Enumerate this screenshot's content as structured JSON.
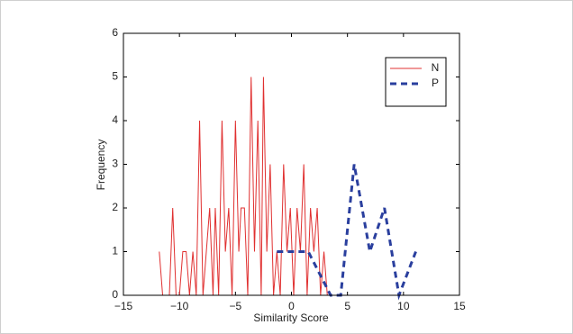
{
  "chart_data": {
    "type": "line",
    "xlabel": "Similarity Score",
    "ylabel": "Frequency",
    "xlim": [
      -15,
      15
    ],
    "xticks": [
      {
        "value": -15,
        "label": "−15"
      },
      {
        "value": -10,
        "label": "−10"
      },
      {
        "value": -5,
        "label": "−5"
      },
      0,
      5,
      10,
      15
    ],
    "ylim": [
      0,
      6
    ],
    "yticks": [
      0,
      1,
      2,
      3,
      4,
      5,
      6
    ],
    "legend": "upper right",
    "series": [
      {
        "name": "N",
        "color": "#e03030",
        "line_style": "solid",
        "x": [
          -11.8,
          -11.5,
          -11.2,
          -10.9,
          -10.6,
          -10.3,
          -10.0,
          -9.7,
          -9.4,
          -9.1,
          -8.8,
          -8.5,
          -8.2,
          -7.9,
          -7.6,
          -7.3,
          -7.0,
          -6.8,
          -6.5,
          -6.2,
          -5.9,
          -5.6,
          -5.3,
          -5.0,
          -4.7,
          -4.5,
          -4.2,
          -3.9,
          -3.6,
          -3.3,
          -3.0,
          -2.7,
          -2.5,
          -2.2,
          -1.9,
          -1.6,
          -1.3,
          -1.0,
          -0.7,
          -0.4,
          -0.1,
          0.2,
          0.5,
          0.8,
          1.1,
          1.4,
          1.7,
          2.0,
          2.3,
          2.6,
          2.9,
          3.2
        ],
        "values": [
          1,
          0,
          0,
          0,
          2,
          0,
          0,
          1,
          1,
          0,
          1,
          0,
          4,
          0,
          1,
          2,
          0,
          2,
          0,
          4,
          1,
          2,
          0,
          4,
          1,
          2,
          2,
          0,
          5,
          1,
          4,
          0,
          5,
          1,
          3,
          0,
          1,
          0,
          3,
          1,
          2,
          0,
          2,
          1,
          3,
          0,
          2,
          1,
          2,
          0,
          1,
          0
        ]
      },
      {
        "name": "P",
        "color": "#2a3f9e",
        "line_style": "dashed",
        "x": [
          -1.3,
          0,
          1.5,
          3.5,
          4.4,
          5.6,
          7.0,
          8.3,
          9.6,
          11.1
        ],
        "values": [
          1,
          1,
          1,
          0,
          0,
          3,
          1,
          2,
          0,
          1
        ]
      }
    ]
  }
}
